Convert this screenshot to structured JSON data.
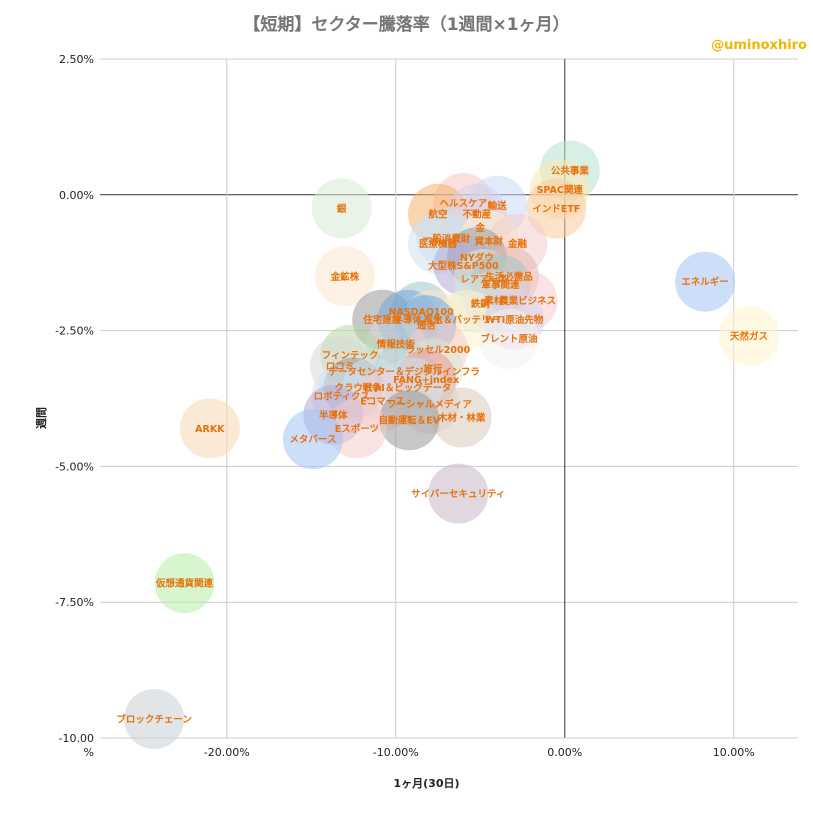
{
  "title": "【短期】セクター騰落率（1週間×1ヶ月）",
  "watermark": "@uminoxhiro",
  "chart_data": {
    "type": "scatter",
    "title": "【短期】セクター騰落率（1週間×1ヶ月）",
    "xlabel": "1ヶ月(30日)",
    "ylabel": "週間",
    "xlim": [
      -27.5,
      13.8
    ],
    "ylim": [
      -10.0,
      2.5
    ],
    "x_ticks": [
      "-20.00%",
      "-10.00%",
      "0.00%",
      "10.00%"
    ],
    "x_tick_values": [
      -20,
      -10,
      0,
      10
    ],
    "y_ticks": [
      "2.50%",
      "0.00%",
      "-2.50%",
      "-5.00%",
      "-7.50%",
      "-10.00 %"
    ],
    "y_tick_values": [
      2.5,
      0,
      -2.5,
      -5,
      -7.5,
      -10
    ],
    "grid": true,
    "points": [
      {
        "label": "公共事業",
        "x": 0.3,
        "y": 0.45,
        "color": "#b7e1cd"
      },
      {
        "label": "SPAC関連",
        "x": -0.3,
        "y": 0.1,
        "color": "#fce8b2"
      },
      {
        "label": "インドETF",
        "x": -0.5,
        "y": -0.25,
        "color": "#f9cb9c"
      },
      {
        "label": "ヘルスケア",
        "x": -6.0,
        "y": -0.15,
        "color": "#f4c7c3"
      },
      {
        "label": "輸送",
        "x": -4.0,
        "y": -0.2,
        "color": "#c9daf8"
      },
      {
        "label": "航空",
        "x": -7.5,
        "y": -0.35,
        "color": "#f6b26b"
      },
      {
        "label": "不動産",
        "x": -5.2,
        "y": -0.35,
        "color": "#d9d2e9"
      },
      {
        "label": "銀",
        "x": -13.2,
        "y": -0.25,
        "color": "#d9ead3"
      },
      {
        "label": "金",
        "x": -5.0,
        "y": -0.6,
        "color": "#ead1dc"
      },
      {
        "label": "一般消費財",
        "x": -7.0,
        "y": -0.8,
        "color": "#cfe2f3"
      },
      {
        "label": "資本財",
        "x": -4.5,
        "y": -0.85,
        "color": "#fff2cc"
      },
      {
        "label": "医療機器",
        "x": -7.5,
        "y": -0.9,
        "color": "#cfe2f3"
      },
      {
        "label": "金融",
        "x": -2.8,
        "y": -0.9,
        "color": "#f4cccc"
      },
      {
        "label": "NYダウ",
        "x": -5.2,
        "y": -1.15,
        "color": "#999999"
      },
      {
        "label": "大型株S&P500",
        "x": -6.0,
        "y": -1.3,
        "color": "#b4a7d6"
      },
      {
        "label": "金鉱株",
        "x": -13.0,
        "y": -1.5,
        "color": "#fce5cd"
      },
      {
        "label": "レアアース",
        "x": -4.8,
        "y": -1.55,
        "color": "#d9ead3"
      },
      {
        "label": "生活必需品",
        "x": -3.3,
        "y": -1.5,
        "color": "#e6b8af"
      },
      {
        "label": "軍事関連",
        "x": -3.8,
        "y": -1.65,
        "color": "#a2c4c9"
      },
      {
        "label": "エネルギー",
        "x": 8.3,
        "y": -1.6,
        "color": "#a4c2f4"
      },
      {
        "label": "鉄鋼",
        "x": -5.0,
        "y": -2.0,
        "color": "#d0e0e3"
      },
      {
        "label": "素材",
        "x": -4.2,
        "y": -1.95,
        "color": "#d9d9d9"
      },
      {
        "label": "農業ビジネス",
        "x": -2.2,
        "y": -1.95,
        "color": "#f4cccc"
      },
      {
        "label": "NASDAQ100",
        "x": -8.5,
        "y": -2.15,
        "color": "#a2c4c9"
      },
      {
        "label": "住宅建設",
        "x": -10.8,
        "y": -2.3,
        "color": "#999999"
      },
      {
        "label": "半導体",
        "x": -9.3,
        "y": -2.3,
        "color": "#6fa8dc"
      },
      {
        "label": "再生",
        "x": -7.8,
        "y": -2.3,
        "color": "#fce5cd"
      },
      {
        "label": "水＆バッテリー",
        "x": -5.8,
        "y": -2.3,
        "color": "#fff2cc"
      },
      {
        "label": "WTI原油先物",
        "x": -3.0,
        "y": -2.3,
        "color": "#d9d2e9"
      },
      {
        "label": "通信",
        "x": -8.2,
        "y": -2.4,
        "color": "#6fa8dc"
      },
      {
        "label": "天然ガス",
        "x": 10.9,
        "y": -2.6,
        "color": "#fff2cc"
      },
      {
        "label": "ブレント原油",
        "x": -3.3,
        "y": -2.65,
        "color": "#f3f3f3"
      },
      {
        "label": "情報技術",
        "x": -10.0,
        "y": -2.75,
        "color": "#d9d9d9"
      },
      {
        "label": "ラッセル2000",
        "x": -7.5,
        "y": -2.85,
        "color": "#f4cccc"
      },
      {
        "label": "フィンテック",
        "x": -12.7,
        "y": -2.95,
        "color": "#b6d7a8"
      },
      {
        "label": "ロコミ",
        "x": -13.3,
        "y": -3.15,
        "color": "#d9d9d9"
      },
      {
        "label": "データセンター＆デジタルインフラ",
        "x": -9.5,
        "y": -3.25,
        "color": "#a2c4c9"
      },
      {
        "label": "旅行",
        "x": -7.8,
        "y": -3.2,
        "color": "#d9ead3"
      },
      {
        "label": "FANG+index",
        "x": -8.2,
        "y": -3.4,
        "color": "#ea9999"
      },
      {
        "label": "クラウド",
        "x": -12.5,
        "y": -3.55,
        "color": "#999999"
      },
      {
        "label": "戦争",
        "x": -11.4,
        "y": -3.55,
        "color": "#cfe2f3"
      },
      {
        "label": "AI＆ビッグデータ",
        "x": -9.0,
        "y": -3.55,
        "color": "#cfe2f3"
      },
      {
        "label": "ロボティクス",
        "x": -13.2,
        "y": -3.7,
        "color": "#cfe2f3"
      },
      {
        "label": "Eコマース",
        "x": -10.8,
        "y": -3.8,
        "color": "#f4cccc"
      },
      {
        "label": "ソーシャルメディア",
        "x": -8.0,
        "y": -3.85,
        "color": "#d9d9d9"
      },
      {
        "label": "半導体",
        "x": -13.7,
        "y": -4.05,
        "color": "#b4a7d6"
      },
      {
        "label": "木材・林業",
        "x": -6.1,
        "y": -4.1,
        "color": "#dbcab9"
      },
      {
        "label": "自動運転＆EV",
        "x": -9.2,
        "y": -4.15,
        "color": "#999999"
      },
      {
        "label": "Eスポーツ",
        "x": -12.3,
        "y": -4.3,
        "color": "#f4cccc"
      },
      {
        "label": "ARKK",
        "x": -21.0,
        "y": -4.3,
        "color": "#f6d9b3"
      },
      {
        "label": "メタバース",
        "x": -14.9,
        "y": -4.5,
        "color": "#a4c2f4"
      },
      {
        "label": "サイバーセキュリティ",
        "x": -6.3,
        "y": -5.5,
        "color": "#c9b6c9"
      },
      {
        "label": "仮想通貨関連",
        "x": -22.5,
        "y": -7.15,
        "color": "#b6efa8"
      },
      {
        "label": "ブロックチェーン",
        "x": -24.3,
        "y": -9.65,
        "color": "#c9d0d6"
      }
    ]
  }
}
